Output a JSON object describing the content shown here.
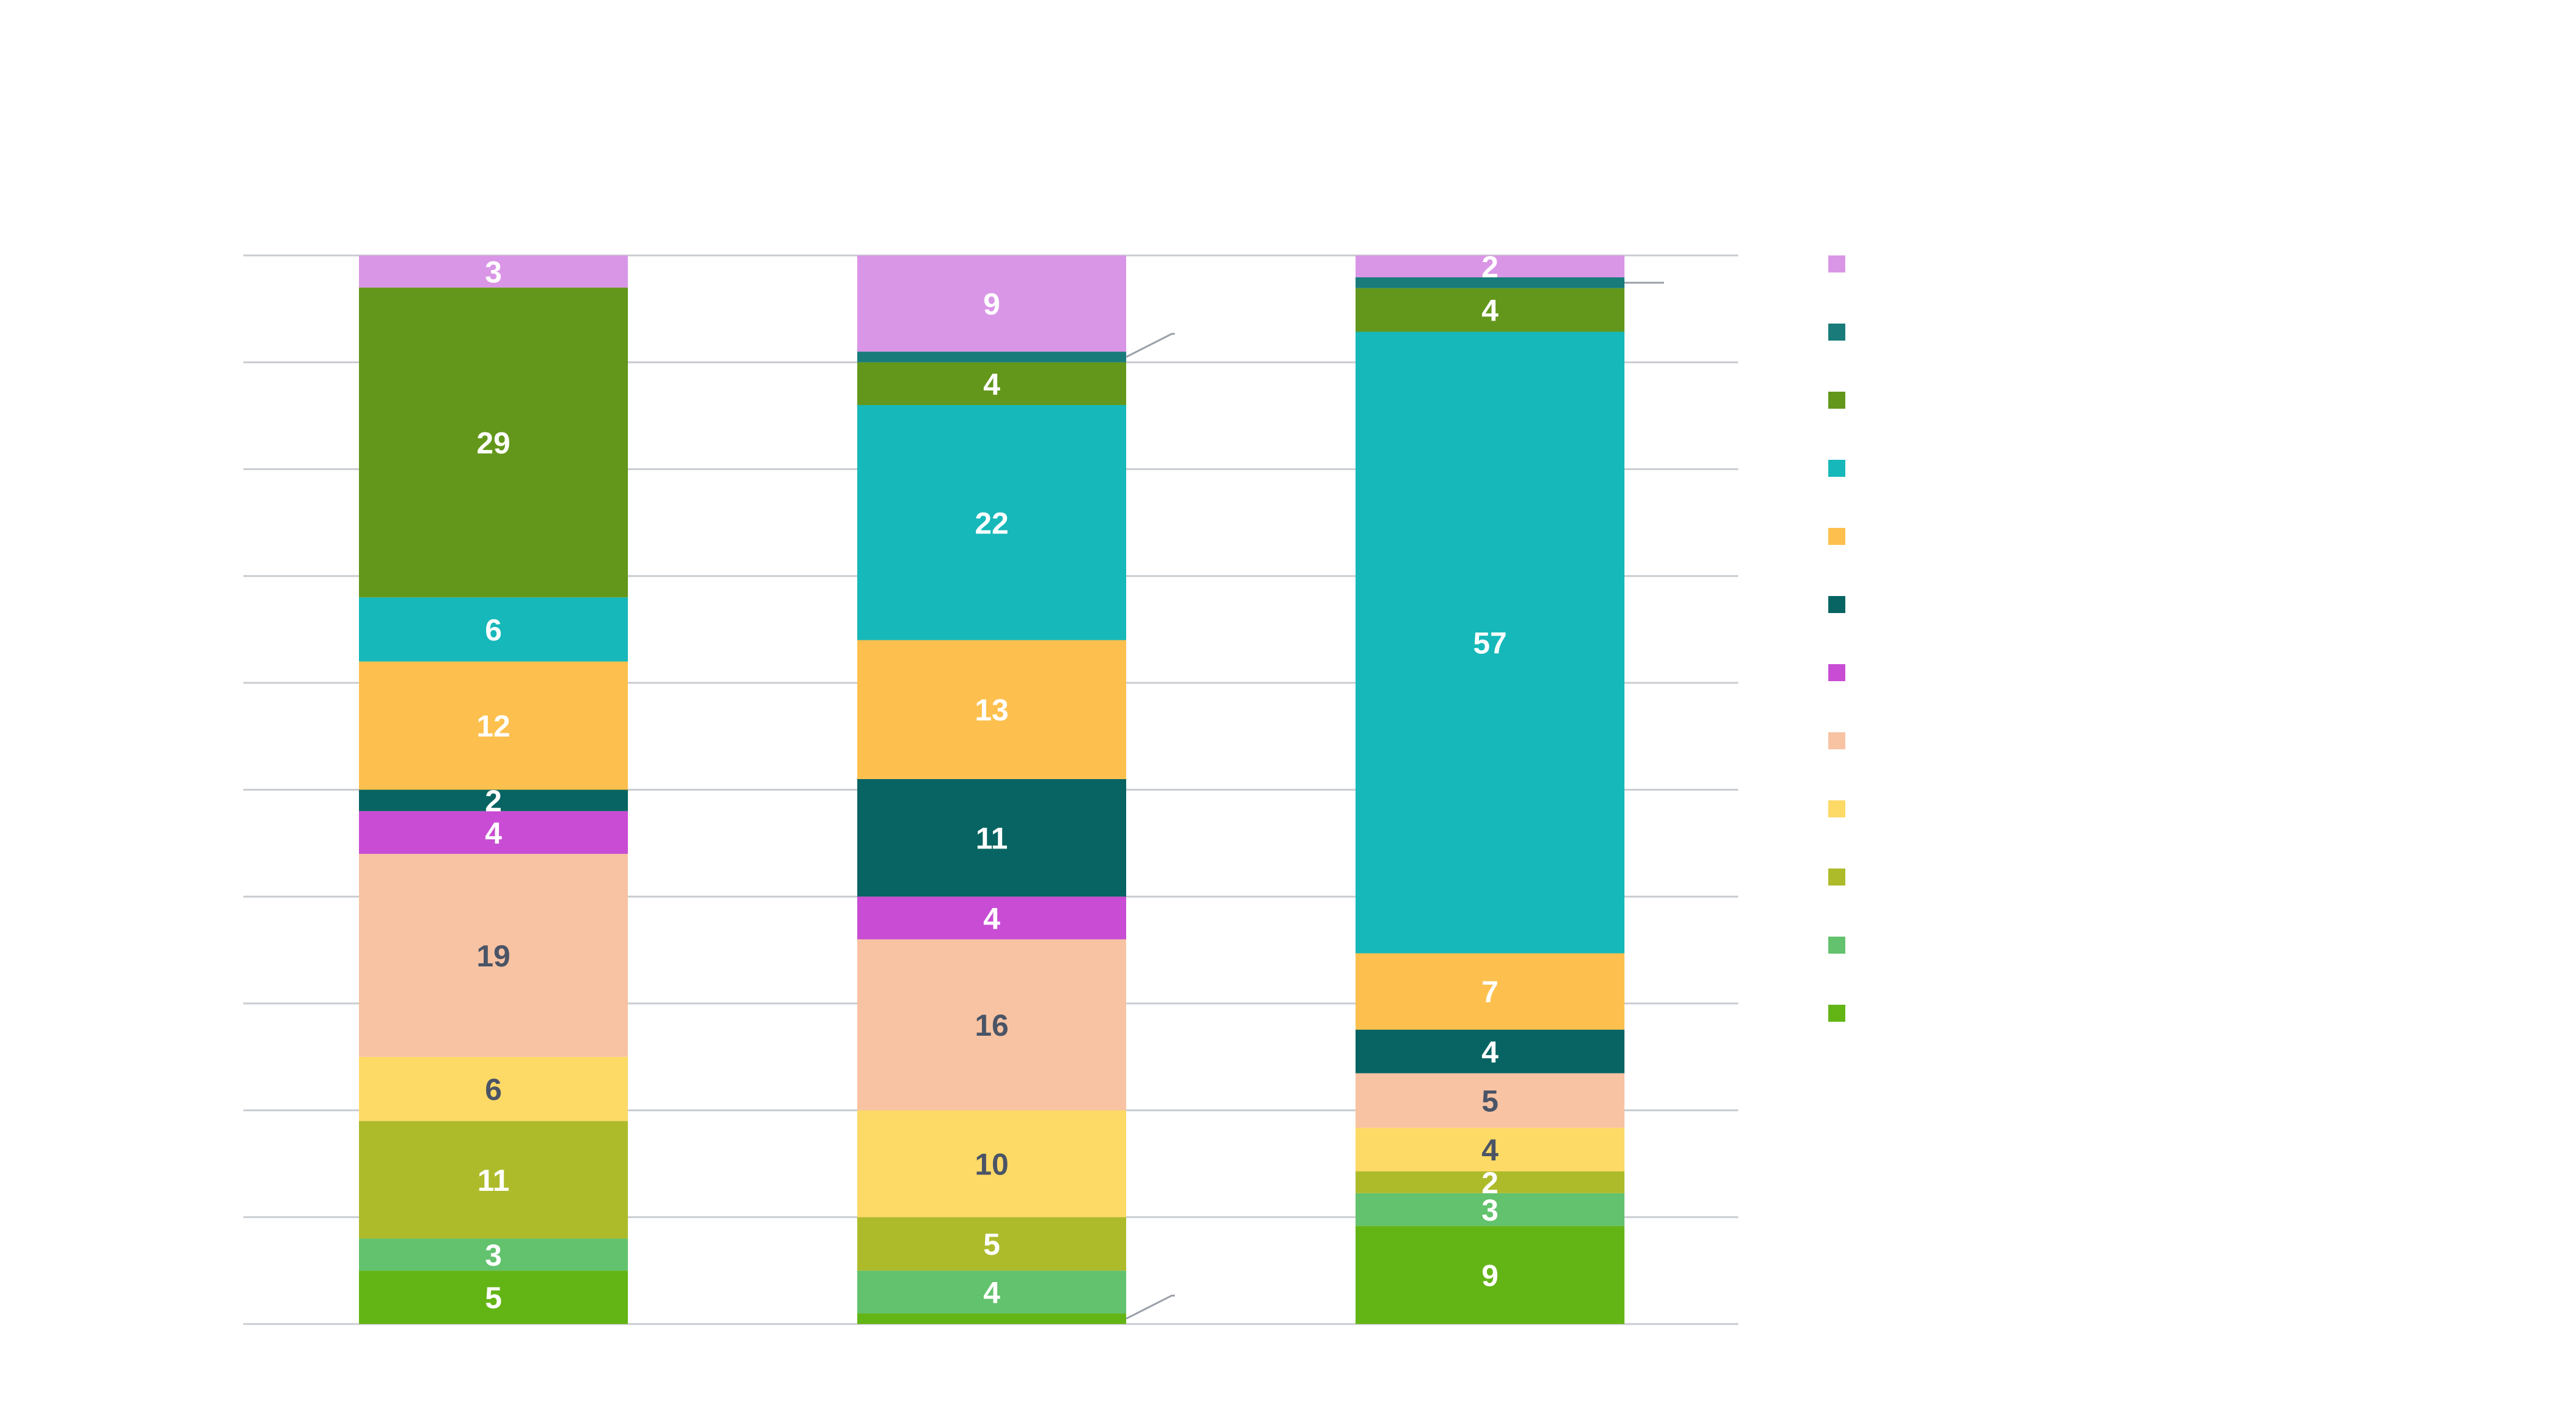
{
  "chart_data": {
    "type": "bar",
    "stacked": true,
    "percent_stacked": true,
    "title": "",
    "xlabel": "",
    "ylabel": "",
    "ylim": [
      0,
      100
    ],
    "grid": true,
    "legend_position": "right",
    "categories": [
      "",
      "",
      ""
    ],
    "series": [
      {
        "color": "#63b516",
        "values": [
          5,
          1,
          9
        ],
        "labels": [
          "5",
          "",
          "9"
        ]
      },
      {
        "color": "#62c26d",
        "values": [
          3,
          4,
          3
        ],
        "labels": [
          "3",
          "4",
          "3"
        ]
      },
      {
        "color": "#adbb2b",
        "values": [
          11,
          5,
          2
        ],
        "labels": [
          "11",
          "5",
          "2"
        ]
      },
      {
        "color": "#fdd966",
        "values": [
          6,
          10,
          4
        ],
        "labels": [
          "6",
          "10",
          "4"
        ]
      },
      {
        "color": "#f7c3a3",
        "values": [
          19,
          16,
          5
        ],
        "labels": [
          "19",
          "16",
          "5"
        ]
      },
      {
        "color": "#c84dd4",
        "values": [
          4,
          4,
          0
        ],
        "labels": [
          "4",
          "4",
          ""
        ]
      },
      {
        "color": "#076462",
        "values": [
          2,
          11,
          4
        ],
        "labels": [
          "2",
          "11",
          "4"
        ]
      },
      {
        "color": "#fdc04e",
        "values": [
          12,
          13,
          7
        ],
        "labels": [
          "12",
          "13",
          "7"
        ]
      },
      {
        "color": "#16b8b9",
        "values": [
          6,
          22,
          57
        ],
        "labels": [
          "6",
          "22",
          "57"
        ]
      },
      {
        "color": "#63971b",
        "values": [
          29,
          4,
          4
        ],
        "labels": [
          "29",
          "4",
          "4"
        ]
      },
      {
        "color": "#197c7b",
        "values": [
          0,
          1,
          1
        ],
        "labels": [
          "",
          "",
          ""
        ]
      },
      {
        "color": "#da96e6",
        "values": [
          3,
          9,
          2
        ],
        "labels": [
          "3",
          "9",
          "2"
        ]
      }
    ],
    "label_colors": {
      "light": "#ffffff",
      "dark": "#4a5466"
    }
  }
}
